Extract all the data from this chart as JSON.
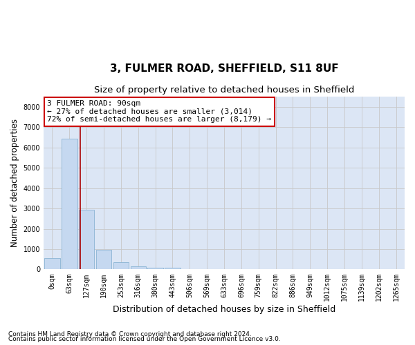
{
  "title_line1": "3, FULMER ROAD, SHEFFIELD, S11 8UF",
  "title_line2": "Size of property relative to detached houses in Sheffield",
  "xlabel": "Distribution of detached houses by size in Sheffield",
  "ylabel": "Number of detached properties",
  "bar_labels": [
    "0sqm",
    "63sqm",
    "127sqm",
    "190sqm",
    "253sqm",
    "316sqm",
    "380sqm",
    "443sqm",
    "506sqm",
    "569sqm",
    "633sqm",
    "696sqm",
    "759sqm",
    "822sqm",
    "886sqm",
    "949sqm",
    "1012sqm",
    "1075sqm",
    "1139sqm",
    "1202sqm",
    "1265sqm"
  ],
  "bar_values": [
    570,
    6420,
    2920,
    980,
    360,
    165,
    100,
    90,
    0,
    0,
    0,
    0,
    0,
    0,
    0,
    0,
    0,
    0,
    0,
    0,
    0
  ],
  "bar_color": "#c5d8f0",
  "bar_edge_color": "#8ab4d4",
  "property_line_x": 1.65,
  "annotation_title": "3 FULMER ROAD: 90sqm",
  "annotation_line2": "← 27% of detached houses are smaller (3,014)",
  "annotation_line3": "72% of semi-detached houses are larger (8,179) →",
  "annotation_box_color": "#ffffff",
  "annotation_box_edge": "#cc0000",
  "vline_color": "#aa0000",
  "ylim": [
    0,
    8500
  ],
  "yticks": [
    0,
    1000,
    2000,
    3000,
    4000,
    5000,
    6000,
    7000,
    8000
  ],
  "grid_color": "#c8c8c8",
  "bg_color": "#dce6f5",
  "footnote_line1": "Contains HM Land Registry data © Crown copyright and database right 2024.",
  "footnote_line2": "Contains public sector information licensed under the Open Government Licence v3.0.",
  "title1_fontsize": 11,
  "title2_fontsize": 9.5,
  "xlabel_fontsize": 9,
  "ylabel_fontsize": 8.5,
  "tick_fontsize": 7,
  "annotation_fontsize": 8,
  "footnote_fontsize": 6.5
}
